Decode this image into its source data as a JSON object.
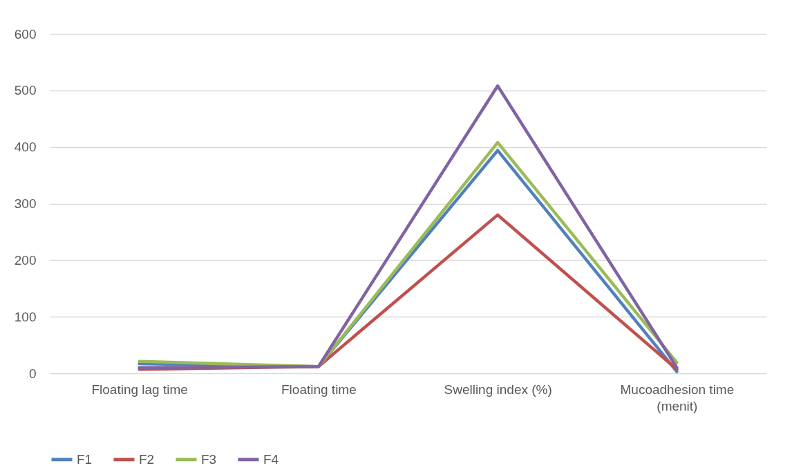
{
  "chart_data": {
    "type": "line",
    "categories": [
      "Floating lag time",
      "Floating time",
      "Swelling index (%)",
      "Mucoadhesion time (menit)"
    ],
    "series": [
      {
        "name": "F1",
        "color": "#4f81bd",
        "values": [
          17,
          12,
          394,
          3
        ]
      },
      {
        "name": "F2",
        "color": "#c0504d",
        "values": [
          7,
          12,
          280,
          7
        ]
      },
      {
        "name": "F3",
        "color": "#9bbb59",
        "values": [
          21,
          12,
          408,
          19
        ]
      },
      {
        "name": "F4",
        "color": "#8064a2",
        "values": [
          10,
          12,
          508,
          10
        ]
      }
    ],
    "ylim": [
      0,
      600
    ],
    "yticks": [
      0,
      100,
      200,
      300,
      400,
      500,
      600
    ],
    "grid": "y",
    "legend": "bottom",
    "marker": "none",
    "line_style": "solid"
  }
}
